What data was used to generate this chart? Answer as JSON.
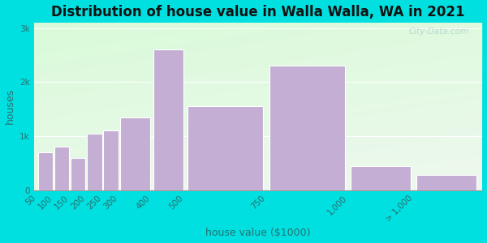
{
  "title": "Distribution of house value in Walla Walla, WA in 2021",
  "xlabel": "house value ($1000)",
  "ylabel": "houses",
  "bar_edges": [
    50,
    100,
    150,
    200,
    250,
    300,
    400,
    500,
    750,
    1000,
    1200,
    1400
  ],
  "values": [
    700,
    800,
    600,
    1050,
    1100,
    1350,
    2600,
    1550,
    2300,
    450,
    275
  ],
  "xtick_positions": [
    50,
    100,
    150,
    200,
    250,
    300,
    400,
    500,
    750,
    1000,
    1200
  ],
  "xtick_labels": [
    "50",
    "100",
    "150",
    "200",
    "250",
    "300",
    "400",
    "500",
    "750",
    "1,000",
    "> 1,000"
  ],
  "bar_color": "#c4aed4",
  "bar_edge_color": "#ffffff",
  "yticks": [
    0,
    1000,
    2000,
    3000
  ],
  "ytick_labels": [
    "0",
    "1k",
    "2k",
    "3k"
  ],
  "ylim": [
    0,
    3100
  ],
  "xlim": [
    40,
    1410
  ],
  "background_outer": "#00e0e0",
  "background_inner": "#eef8ee",
  "title_fontsize": 12,
  "axis_label_fontsize": 9,
  "tick_fontsize": 7.5,
  "watermark": "City-Data.com"
}
